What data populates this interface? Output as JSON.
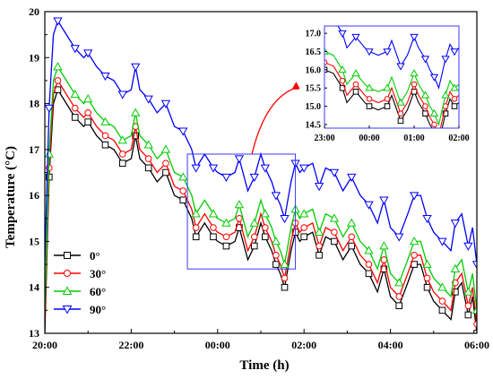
{
  "chart_data": {
    "type": "line",
    "xlabel": "Time (h)",
    "ylabel": "Temperature (°C)",
    "xlim": [
      20,
      30
    ],
    "ylim": [
      13,
      20
    ],
    "x_ticks": [
      {
        "value": 20,
        "label": "20:00"
      },
      {
        "value": 22,
        "label": "22:00"
      },
      {
        "value": 24,
        "label": "00:00"
      },
      {
        "value": 26,
        "label": "02:00"
      },
      {
        "value": 28,
        "label": "04:00"
      },
      {
        "value": 30,
        "label": "06:00"
      }
    ],
    "y_ticks": [
      13,
      14,
      15,
      16,
      17,
      18,
      19,
      20
    ],
    "legend_position": "lower-left",
    "series": [
      {
        "name": "0°",
        "color": "#000000",
        "marker": "square",
        "offset": 0,
        "base": [
          [
            20.0,
            13.0
          ],
          [
            20.1,
            16.4
          ],
          [
            20.2,
            18.0
          ],
          [
            20.3,
            18.3
          ],
          [
            20.5,
            18.0
          ],
          [
            20.7,
            17.7
          ],
          [
            20.9,
            17.5
          ],
          [
            21.0,
            17.6
          ],
          [
            21.2,
            17.3
          ],
          [
            21.4,
            17.1
          ],
          [
            21.6,
            17.0
          ],
          [
            21.8,
            16.7
          ],
          [
            22.0,
            16.8
          ],
          [
            22.1,
            17.3
          ],
          [
            22.2,
            16.8
          ],
          [
            22.4,
            16.6
          ],
          [
            22.6,
            16.3
          ],
          [
            22.8,
            16.5
          ],
          [
            23.0,
            16.0
          ],
          [
            23.2,
            15.9
          ],
          [
            23.4,
            15.5
          ],
          [
            23.5,
            15.1
          ],
          [
            23.7,
            15.4
          ],
          [
            23.9,
            15.1
          ],
          [
            24.0,
            15.0
          ],
          [
            24.2,
            14.9
          ],
          [
            24.4,
            15.0
          ],
          [
            24.5,
            15.3
          ],
          [
            24.7,
            14.6
          ],
          [
            24.85,
            14.9
          ],
          [
            25.0,
            15.4
          ],
          [
            25.1,
            15.1
          ],
          [
            25.25,
            14.8
          ],
          [
            25.35,
            14.5
          ],
          [
            25.45,
            14.3
          ],
          [
            25.55,
            14.0
          ],
          [
            25.7,
            14.8
          ],
          [
            25.8,
            15.2
          ],
          [
            25.9,
            15.0
          ],
          [
            26.0,
            15.1
          ],
          [
            26.2,
            15.2
          ],
          [
            26.35,
            14.7
          ],
          [
            26.5,
            15.1
          ],
          [
            26.7,
            15.0
          ],
          [
            26.9,
            14.6
          ],
          [
            27.1,
            14.9
          ],
          [
            27.3,
            14.5
          ],
          [
            27.5,
            14.3
          ],
          [
            27.7,
            13.9
          ],
          [
            27.85,
            14.4
          ],
          [
            28.0,
            13.8
          ],
          [
            28.2,
            13.6
          ],
          [
            28.4,
            14.1
          ],
          [
            28.55,
            14.5
          ],
          [
            28.7,
            14.5
          ],
          [
            28.85,
            14.0
          ],
          [
            29.0,
            13.7
          ],
          [
            29.2,
            13.5
          ],
          [
            29.4,
            13.3
          ],
          [
            29.5,
            13.9
          ],
          [
            29.65,
            14.1
          ],
          [
            29.8,
            13.4
          ],
          [
            29.9,
            13.8
          ],
          [
            30.0,
            13.0
          ]
        ]
      },
      {
        "name": "30°",
        "color": "#ff0000",
        "marker": "circle",
        "offset": 0.2
      },
      {
        "name": "60°",
        "color": "#00cc00",
        "marker": "triangle-up",
        "offset": 0.5
      },
      {
        "name": "90°",
        "color": "#0000ff",
        "marker": "triangle-down",
        "offset": 1.5
      }
    ],
    "inset": {
      "xlim": [
        23,
        26
      ],
      "ylim": [
        14.4,
        17.2
      ],
      "x_ticks": [
        {
          "value": 23,
          "label": "23:00"
        },
        {
          "value": 24,
          "label": "00:00"
        },
        {
          "value": 25,
          "label": "01:00"
        },
        {
          "value": 26,
          "label": "02:00"
        }
      ],
      "y_ticks": [
        "14.5",
        "15.0",
        "15.5",
        "16.0",
        "16.5",
        "17.0"
      ],
      "zoom_region": {
        "x": [
          23.3,
          25.8
        ],
        "y": [
          14.4,
          16.9
        ]
      }
    }
  }
}
